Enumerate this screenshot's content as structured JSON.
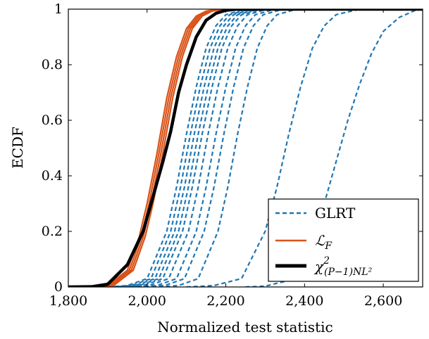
{
  "chart_data": {
    "type": "line",
    "title": "",
    "xlabel": "Normalized test statistic",
    "ylabel": "ECDF",
    "xlim": [
      1800,
      2700
    ],
    "ylim": [
      0,
      1
    ],
    "grid": false,
    "legend_position": "bottom-right",
    "x_ticks": [
      1800,
      2000,
      2200,
      2400,
      2600
    ],
    "x_tick_labels": [
      "1,800",
      "2,000",
      "2,200",
      "2,400",
      "2,600"
    ],
    "y_ticks": [
      0,
      0.2,
      0.4,
      0.6,
      0.8,
      1
    ],
    "y_tick_labels": [
      "0",
      "0.2",
      "0.4",
      "0.6",
      "0.8",
      "1"
    ],
    "colors": {
      "glrt": "#1f77b4",
      "lf": "#d95319",
      "chi2": "#000000"
    },
    "legend": [
      {
        "name": "GLRT",
        "style": "dashed",
        "color": "#1f77b4"
      },
      {
        "name": "ℒ_F",
        "style": "solid",
        "color": "#d95319"
      },
      {
        "name": "χ²_(P−1)NL²",
        "style": "solid-thick",
        "color": "#000000"
      }
    ],
    "series": [
      {
        "name": "GLRT",
        "group": "GLRT",
        "x": [
          1900,
          1950,
          2000,
          2050,
          2075,
          2100,
          2125,
          2150,
          2175,
          2200,
          2250
        ],
        "y": [
          0,
          0.005,
          0.03,
          0.2,
          0.36,
          0.55,
          0.72,
          0.86,
          0.94,
          0.98,
          1
        ]
      },
      {
        "name": "GLRT",
        "group": "GLRT",
        "x": [
          1910,
          1960,
          2010,
          2060,
          2085,
          2110,
          2135,
          2160,
          2185,
          2210,
          2260
        ],
        "y": [
          0,
          0.005,
          0.03,
          0.2,
          0.36,
          0.55,
          0.72,
          0.86,
          0.94,
          0.98,
          1
        ]
      },
      {
        "name": "GLRT",
        "group": "GLRT",
        "x": [
          1920,
          1970,
          2020,
          2070,
          2095,
          2120,
          2145,
          2170,
          2195,
          2220,
          2270
        ],
        "y": [
          0,
          0.005,
          0.03,
          0.2,
          0.36,
          0.55,
          0.72,
          0.86,
          0.94,
          0.98,
          1
        ]
      },
      {
        "name": "GLRT",
        "group": "GLRT",
        "x": [
          1930,
          1980,
          2030,
          2080,
          2105,
          2130,
          2155,
          2180,
          2205,
          2230,
          2280
        ],
        "y": [
          0,
          0.005,
          0.03,
          0.2,
          0.36,
          0.55,
          0.72,
          0.86,
          0.94,
          0.98,
          1
        ]
      },
      {
        "name": "GLRT",
        "group": "GLRT",
        "x": [
          1940,
          1990,
          2040,
          2090,
          2115,
          2140,
          2165,
          2190,
          2215,
          2240,
          2290
        ],
        "y": [
          0,
          0.005,
          0.03,
          0.2,
          0.36,
          0.55,
          0.72,
          0.86,
          0.94,
          0.98,
          1
        ]
      },
      {
        "name": "GLRT",
        "group": "GLRT",
        "x": [
          1955,
          2005,
          2055,
          2105,
          2130,
          2155,
          2180,
          2205,
          2230,
          2255,
          2305
        ],
        "y": [
          0,
          0.005,
          0.03,
          0.2,
          0.36,
          0.55,
          0.72,
          0.86,
          0.94,
          0.98,
          1
        ]
      },
      {
        "name": "GLRT",
        "group": "GLRT",
        "x": [
          1975,
          2025,
          2075,
          2125,
          2150,
          2175,
          2200,
          2225,
          2250,
          2275,
          2325
        ],
        "y": [
          0,
          0.005,
          0.03,
          0.2,
          0.36,
          0.55,
          0.72,
          0.86,
          0.94,
          0.98,
          1
        ]
      },
      {
        "name": "GLRT",
        "group": "GLRT",
        "x": [
          1995,
          2045,
          2095,
          2145,
          2170,
          2195,
          2220,
          2245,
          2270,
          2295,
          2345
        ],
        "y": [
          0,
          0.005,
          0.03,
          0.2,
          0.36,
          0.55,
          0.72,
          0.86,
          0.94,
          0.98,
          1
        ]
      },
      {
        "name": "GLRT",
        "group": "GLRT",
        "x": [
          2030,
          2080,
          2130,
          2180,
          2205,
          2230,
          2255,
          2280,
          2305,
          2330,
          2380
        ],
        "y": [
          0,
          0.005,
          0.03,
          0.2,
          0.36,
          0.55,
          0.72,
          0.86,
          0.94,
          0.98,
          1
        ]
      },
      {
        "name": "GLRT",
        "group": "GLRT",
        "x": [
          2100,
          2170,
          2240,
          2300,
          2330,
          2360,
          2390,
          2420,
          2450,
          2480,
          2540
        ],
        "y": [
          0,
          0.005,
          0.03,
          0.2,
          0.36,
          0.55,
          0.72,
          0.86,
          0.94,
          0.98,
          1
        ]
      },
      {
        "name": "GLRT",
        "group": "GLRT",
        "x": [
          2250,
          2300,
          2350,
          2400,
          2450,
          2480,
          2510,
          2540,
          2570,
          2600,
          2640,
          2680,
          2700
        ],
        "y": [
          0,
          0.003,
          0.02,
          0.12,
          0.3,
          0.45,
          0.6,
          0.73,
          0.84,
          0.92,
          0.97,
          0.995,
          1
        ]
      },
      {
        "name": "ℒ_F",
        "group": "LF",
        "x": [
          1850,
          1900,
          1950,
          1980,
          2000,
          2025,
          2050,
          2075,
          2100,
          2125,
          2150,
          2175,
          2200
        ],
        "y": [
          0,
          0.005,
          0.06,
          0.18,
          0.3,
          0.48,
          0.68,
          0.83,
          0.93,
          0.975,
          0.993,
          0.999,
          1
        ]
      },
      {
        "name": "ℒ_F",
        "group": "LF",
        "x": [
          1855,
          1905,
          1955,
          1985,
          2005,
          2030,
          2055,
          2080,
          2105,
          2130,
          2155,
          2180,
          2205
        ],
        "y": [
          0,
          0.005,
          0.06,
          0.18,
          0.3,
          0.48,
          0.68,
          0.83,
          0.93,
          0.975,
          0.993,
          0.999,
          1
        ]
      },
      {
        "name": "ℒ_F",
        "group": "LF",
        "x": [
          1860,
          1910,
          1960,
          1990,
          2010,
          2035,
          2060,
          2085,
          2110,
          2135,
          2160,
          2185,
          2210
        ],
        "y": [
          0,
          0.005,
          0.06,
          0.18,
          0.3,
          0.48,
          0.68,
          0.83,
          0.93,
          0.975,
          0.993,
          0.999,
          1
        ]
      },
      {
        "name": "ℒ_F",
        "group": "LF",
        "x": [
          1865,
          1915,
          1965,
          1995,
          2015,
          2040,
          2065,
          2090,
          2115,
          2140,
          2165,
          2190,
          2215
        ],
        "y": [
          0,
          0.005,
          0.06,
          0.18,
          0.3,
          0.48,
          0.68,
          0.83,
          0.93,
          0.975,
          0.993,
          0.999,
          1
        ]
      },
      {
        "name": "χ²_(P−1)NL²",
        "group": "CHI",
        "x": [
          1800,
          1860,
          1900,
          1950,
          1990,
          2010,
          2040,
          2060,
          2080,
          2100,
          2125,
          2150,
          2175,
          2200,
          2230,
          2700
        ],
        "y": [
          0,
          0.001,
          0.01,
          0.08,
          0.2,
          0.3,
          0.45,
          0.56,
          0.7,
          0.8,
          0.9,
          0.96,
          0.985,
          0.996,
          1,
          1
        ]
      }
    ]
  }
}
